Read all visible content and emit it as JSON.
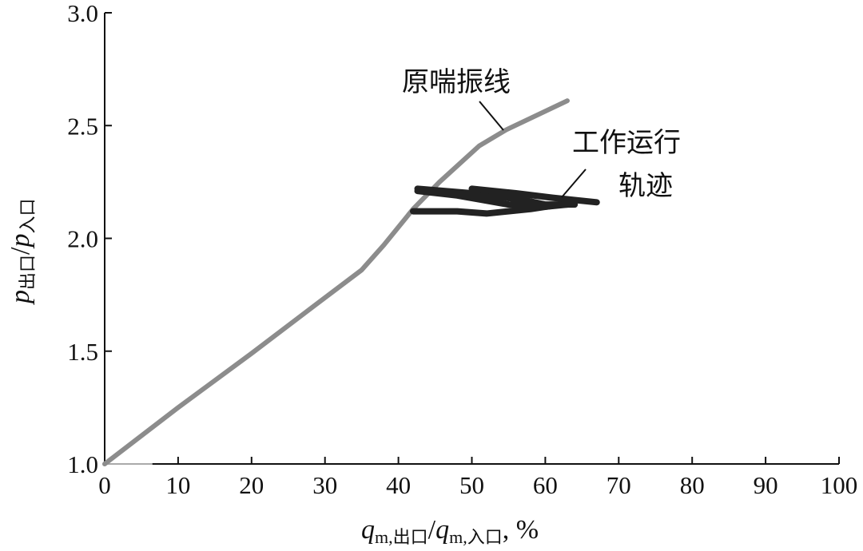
{
  "chart_data": {
    "type": "line",
    "xlabel": {
      "q": "q",
      "sub1": "m,出口",
      "slash": "/",
      "q2": "q",
      "sub2": "m,入口",
      "unit": ", %"
    },
    "ylabel": {
      "p": "p",
      "sub1": "出口",
      "slash": "/",
      "p2": "p",
      "sub2": "入口"
    },
    "xlim": [
      0,
      100
    ],
    "ylim": [
      1.0,
      3.0
    ],
    "xticks": [
      "0",
      "10",
      "20",
      "30",
      "40",
      "50",
      "60",
      "70",
      "80",
      "90",
      "100"
    ],
    "yticks": [
      "1.0",
      "1.5",
      "2.0",
      "2.5",
      "3.0"
    ],
    "grid": false,
    "series": [
      {
        "name": "原喘振线",
        "color": "#8c8c8c",
        "x": [
          0,
          10,
          20,
          29.3,
          35,
          38,
          42,
          45.6,
          51,
          54.6,
          63
        ],
        "y": [
          1.0,
          1.25,
          1.49,
          1.72,
          1.86,
          1.97,
          2.13,
          2.25,
          2.41,
          2.48,
          2.61
        ]
      },
      {
        "name": "工作运行轨迹",
        "color": "#222222",
        "strokes": [
          {
            "x": [
              42.6,
              50,
              57,
              60,
              64
            ],
            "y": [
              2.22,
              2.2,
              2.17,
              2.15,
              2.15
            ]
          },
          {
            "x": [
              42.6,
              48,
              55,
              60,
              63
            ],
            "y": [
              2.21,
              2.19,
              2.15,
              2.14,
              2.15
            ]
          },
          {
            "x": [
              50,
              56,
              61,
              67
            ],
            "y": [
              2.22,
              2.2,
              2.18,
              2.16
            ]
          },
          {
            "x": [
              42,
              48,
              52,
              58,
              62
            ],
            "y": [
              2.12,
              2.12,
              2.11,
              2.13,
              2.15
            ]
          }
        ]
      }
    ],
    "baseline_segment": {
      "x": [
        0,
        6.5
      ],
      "y": [
        1.0,
        1.0
      ]
    },
    "annotations": [
      {
        "text": "原喘振线"
      },
      {
        "text_line1": "工作运行",
        "text_line2": "轨迹"
      }
    ]
  }
}
